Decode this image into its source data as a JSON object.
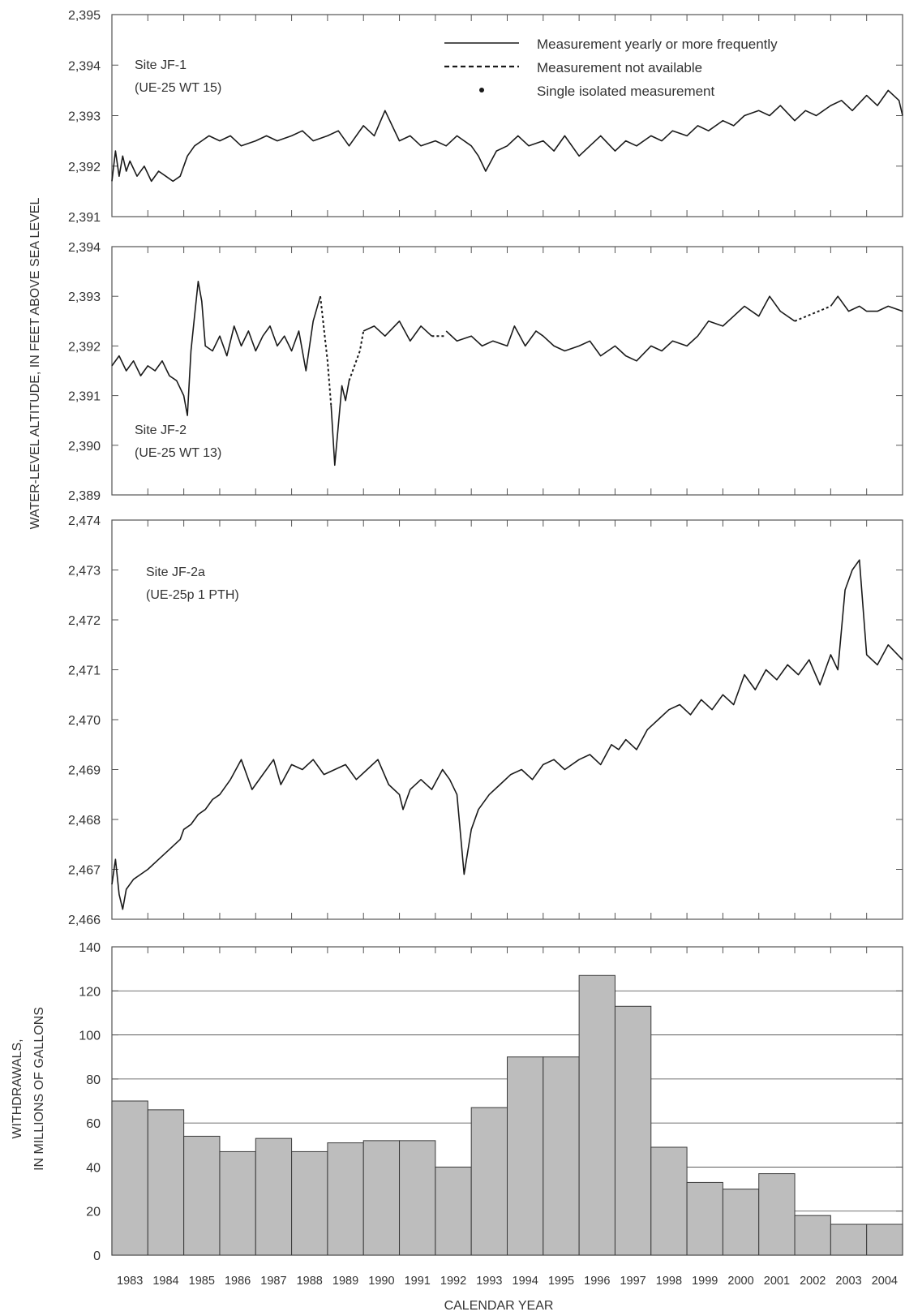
{
  "figure": {
    "y_label_water": "WATER-LEVEL ALTITUDE, IN FEET ABOVE SEA LEVEL",
    "y_label_withdrawal_1": "WITHDRAWALS,",
    "y_label_withdrawal_2": "IN MILLIONS OF GALLONS",
    "x_label": "CALENDAR YEAR"
  },
  "legend": {
    "solid": "Measurement yearly or more frequently",
    "dashed": "Measurement not available",
    "dot": "Single isolated measurement"
  },
  "colors": {
    "line": "#1a1a1a",
    "bar_fill": "#bdbdbd",
    "bar_stroke": "#3a3a3a",
    "grid": "#444444",
    "axis": "#555555"
  },
  "chart_data": [
    {
      "type": "line",
      "site": "Site JF-1",
      "well": "(UE-25 WT 15)",
      "ylim": [
        2391,
        2395
      ],
      "yticks": [
        "2,391",
        "2,392",
        "2,393",
        "2,394",
        "2,395"
      ],
      "series": [
        {
          "style": "solid",
          "x": [
            1983.0,
            1983.1,
            1983.2,
            1983.3,
            1983.4,
            1983.5,
            1983.7,
            1983.9,
            1984.1,
            1984.3,
            1984.5,
            1984.7,
            1984.9,
            1985.1,
            1985.3,
            1985.5,
            1985.7,
            1986.0,
            1986.3,
            1986.6,
            1987.0,
            1987.3,
            1987.6,
            1988.0,
            1988.3,
            1988.6,
            1989.0,
            1989.3,
            1989.6,
            1990.0,
            1990.3,
            1990.6,
            1991.0,
            1991.3,
            1991.6,
            1992.0,
            1992.3,
            1992.6,
            1993.0,
            1993.2,
            1993.4,
            1993.7,
            1994.0,
            1994.3,
            1994.6,
            1995.0,
            1995.3,
            1995.6,
            1996.0,
            1996.3,
            1996.6,
            1997.0,
            1997.3,
            1997.6,
            1998.0,
            1998.3,
            1998.6,
            1999.0,
            1999.3,
            1999.6,
            2000.0,
            2000.3,
            2000.6,
            2001.0,
            2001.3,
            2001.6,
            2002.0,
            2002.3,
            2002.6,
            2003.0,
            2003.3,
            2003.6,
            2004.0,
            2004.3,
            2004.6,
            2004.9,
            2005.0
          ],
          "y": [
            2391.7,
            2392.3,
            2391.8,
            2392.2,
            2391.9,
            2392.1,
            2391.8,
            2392.0,
            2391.7,
            2391.9,
            2391.8,
            2391.7,
            2391.8,
            2392.2,
            2392.4,
            2392.5,
            2392.6,
            2392.5,
            2392.6,
            2392.4,
            2392.5,
            2392.6,
            2392.5,
            2392.6,
            2392.7,
            2392.5,
            2392.6,
            2392.7,
            2392.4,
            2392.8,
            2392.6,
            2393.1,
            2392.5,
            2392.6,
            2392.4,
            2392.5,
            2392.4,
            2392.6,
            2392.4,
            2392.2,
            2391.9,
            2392.3,
            2392.4,
            2392.6,
            2392.4,
            2392.5,
            2392.3,
            2392.6,
            2392.2,
            2392.4,
            2392.6,
            2392.3,
            2392.5,
            2392.4,
            2392.6,
            2392.5,
            2392.7,
            2392.6,
            2392.8,
            2392.7,
            2392.9,
            2392.8,
            2393.0,
            2393.1,
            2393.0,
            2393.2,
            2392.9,
            2393.1,
            2393.0,
            2393.2,
            2393.3,
            2393.1,
            2393.4,
            2393.2,
            2393.5,
            2393.3,
            2393.0
          ]
        }
      ]
    },
    {
      "type": "line",
      "site": "Site JF-2",
      "well": "(UE-25 WT 13)",
      "ylim": [
        2389,
        2394
      ],
      "yticks": [
        "2,389",
        "2,390",
        "2,391",
        "2,392",
        "2,393",
        "2,394"
      ],
      "series": [
        {
          "style": "solid",
          "x": [
            1983.0,
            1983.2,
            1983.4,
            1983.6,
            1983.8,
            1984.0,
            1984.2,
            1984.4,
            1984.6,
            1984.8,
            1985.0,
            1985.1,
            1985.2,
            1985.3,
            1985.4,
            1985.5,
            1985.6,
            1985.8,
            1986.0,
            1986.2,
            1986.4,
            1986.6,
            1986.8,
            1987.0,
            1987.2,
            1987.4,
            1987.6,
            1987.8,
            1988.0,
            1988.2,
            1988.4,
            1988.6,
            1988.8
          ],
          "y": [
            2391.6,
            2391.8,
            2391.5,
            2391.7,
            2391.4,
            2391.6,
            2391.5,
            2391.7,
            2391.4,
            2391.3,
            2391.0,
            2390.6,
            2391.9,
            2392.6,
            2393.3,
            2392.9,
            2392.0,
            2391.9,
            2392.2,
            2391.8,
            2392.4,
            2392.0,
            2392.3,
            2391.9,
            2392.2,
            2392.4,
            2392.0,
            2392.2,
            2391.9,
            2392.3,
            2391.5,
            2392.5,
            2393.0
          ]
        },
        {
          "style": "dashed",
          "x": [
            1988.8,
            1989.0,
            1989.1
          ],
          "y": [
            2393.0,
            2391.7,
            2390.8
          ]
        },
        {
          "style": "solid",
          "x": [
            1989.1,
            1989.2,
            1989.3,
            1989.4,
            1989.5,
            1989.6
          ],
          "y": [
            2390.8,
            2389.6,
            2390.4,
            2391.2,
            2390.9,
            2391.3
          ]
        },
        {
          "style": "dashed",
          "x": [
            1989.6,
            1989.9,
            1990.0
          ],
          "y": [
            2391.3,
            2391.9,
            2392.3
          ]
        },
        {
          "style": "solid",
          "x": [
            1990.0,
            1990.3,
            1990.6,
            1991.0,
            1991.3,
            1991.6,
            1991.9
          ],
          "y": [
            2392.3,
            2392.4,
            2392.2,
            2392.5,
            2392.1,
            2392.4,
            2392.2
          ]
        },
        {
          "style": "dashed",
          "x": [
            1991.9,
            1992.3
          ],
          "y": [
            2392.2,
            2392.2
          ]
        },
        {
          "style": "solid",
          "x": [
            1992.3,
            1992.6,
            1993.0,
            1993.3,
            1993.6,
            1994.0,
            1994.2,
            1994.5,
            1994.8,
            1995.0,
            1995.3,
            1995.6,
            1996.0,
            1996.3,
            1996.6,
            1997.0,
            1997.3,
            1997.6,
            1998.0,
            1998.3,
            1998.6,
            1999.0,
            1999.3,
            1999.6,
            2000.0,
            2000.3,
            2000.6,
            2001.0,
            2001.3,
            2001.6,
            2002.0
          ],
          "y": [
            2392.3,
            2392.1,
            2392.2,
            2392.0,
            2392.1,
            2392.0,
            2392.4,
            2392.0,
            2392.3,
            2392.2,
            2392.0,
            2391.9,
            2392.0,
            2392.1,
            2391.8,
            2392.0,
            2391.8,
            2391.7,
            2392.0,
            2391.9,
            2392.1,
            2392.0,
            2392.2,
            2392.5,
            2392.4,
            2392.6,
            2392.8,
            2392.6,
            2393.0,
            2392.7,
            2392.5
          ]
        },
        {
          "style": "dashed",
          "x": [
            2002.0,
            2003.0
          ],
          "y": [
            2392.5,
            2392.8
          ]
        },
        {
          "style": "solid",
          "x": [
            2003.0,
            2003.2,
            2003.5,
            2003.8,
            2004.0,
            2004.3,
            2004.6,
            2005.0
          ],
          "y": [
            2392.8,
            2393.0,
            2392.7,
            2392.8,
            2392.7,
            2392.7,
            2392.8,
            2392.7
          ]
        }
      ]
    },
    {
      "type": "line",
      "site": "Site JF-2a",
      "well": "(UE-25p 1 PTH)",
      "ylim": [
        2466,
        2474
      ],
      "yticks": [
        "2,466",
        "2,467",
        "2,468",
        "2,469",
        "2,470",
        "2,471",
        "2,472",
        "2,473",
        "2,474"
      ],
      "series": [
        {
          "style": "solid",
          "x": [
            1983.0,
            1983.1,
            1983.2,
            1983.3,
            1983.4,
            1983.6,
            1983.8,
            1984.0,
            1984.3,
            1984.6,
            1984.9,
            1985.0,
            1985.2,
            1985.4,
            1985.6,
            1985.8,
            1986.0,
            1986.3,
            1986.6,
            1986.9,
            1987.2,
            1987.5,
            1987.7,
            1988.0,
            1988.3,
            1988.6,
            1988.9,
            1989.2,
            1989.5,
            1989.8,
            1990.1,
            1990.4,
            1990.7,
            1991.0,
            1991.1,
            1991.3,
            1991.6,
            1991.9,
            1992.2,
            1992.4,
            1992.6,
            1992.8,
            1993.0,
            1993.2,
            1993.5,
            1993.8,
            1994.1,
            1994.4,
            1994.7,
            1995.0,
            1995.3,
            1995.6,
            1996.0,
            1996.3,
            1996.6,
            1996.9,
            1997.1,
            1997.3,
            1997.6,
            1997.9,
            1998.2,
            1998.5,
            1998.8,
            1999.1,
            1999.4,
            1999.7,
            2000.0,
            2000.3,
            2000.6,
            2000.9,
            2001.2,
            2001.5,
            2001.8,
            2002.1,
            2002.4,
            2002.7,
            2003.0,
            2003.2,
            2003.4,
            2003.6,
            2003.8,
            2004.0,
            2004.3,
            2004.6,
            2005.0
          ],
          "y": [
            2466.7,
            2467.2,
            2466.5,
            2466.2,
            2466.6,
            2466.8,
            2466.9,
            2467.0,
            2467.2,
            2467.4,
            2467.6,
            2467.8,
            2467.9,
            2468.1,
            2468.2,
            2468.4,
            2468.5,
            2468.8,
            2469.2,
            2468.6,
            2468.9,
            2469.2,
            2468.7,
            2469.1,
            2469.0,
            2469.2,
            2468.9,
            2469.0,
            2469.1,
            2468.8,
            2469.0,
            2469.2,
            2468.7,
            2468.5,
            2468.2,
            2468.6,
            2468.8,
            2468.6,
            2469.0,
            2468.8,
            2468.5,
            2466.9,
            2467.8,
            2468.2,
            2468.5,
            2468.7,
            2468.9,
            2469.0,
            2468.8,
            2469.1,
            2469.2,
            2469.0,
            2469.2,
            2469.3,
            2469.1,
            2469.5,
            2469.4,
            2469.6,
            2469.4,
            2469.8,
            2470.0,
            2470.2,
            2470.3,
            2470.1,
            2470.4,
            2470.2,
            2470.5,
            2470.3,
            2470.9,
            2470.6,
            2471.0,
            2470.8,
            2471.1,
            2470.9,
            2471.2,
            2470.7,
            2471.3,
            2471.0,
            2472.6,
            2473.0,
            2473.2,
            2471.3,
            2471.1,
            2471.5,
            2471.2
          ]
        }
      ]
    },
    {
      "type": "bar",
      "categories": [
        "1983",
        "1984",
        "1985",
        "1986",
        "1987",
        "1988",
        "1989",
        "1990",
        "1991",
        "1992",
        "1993",
        "1994",
        "1995",
        "1996",
        "1997",
        "1998",
        "1999",
        "2000",
        "2001",
        "2002",
        "2003",
        "2004"
      ],
      "values": [
        70,
        66,
        54,
        47,
        53,
        47,
        51,
        52,
        52,
        40,
        67,
        90,
        90,
        127,
        113,
        49,
        33,
        30,
        37,
        18,
        14,
        14
      ],
      "ylim": [
        0,
        140
      ],
      "yticks": [
        "0",
        "20",
        "40",
        "60",
        "80",
        "100",
        "120",
        "140"
      ],
      "grid": "horizontal"
    }
  ]
}
